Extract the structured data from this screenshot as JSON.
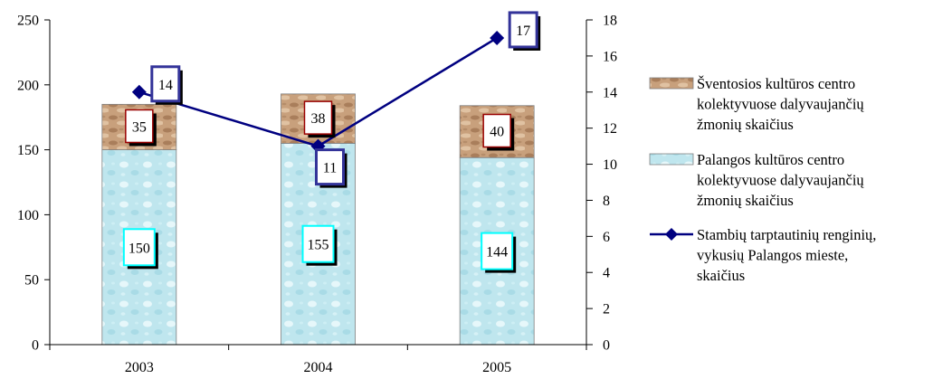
{
  "chart_data": {
    "type": "bar",
    "stacked": true,
    "categories": [
      "2003",
      "2004",
      "2005"
    ],
    "series": [
      {
        "name": "Palangos kultūros centro kolektyvuose dalyvaujančių žmonių skaičius",
        "legend_lines": [
          "Palangos kultūros centro",
          "kolektyvuose dalyvaujančių",
          "žmonių skaičius"
        ],
        "type": "bar",
        "axis": "left",
        "values": [
          150,
          155,
          144
        ],
        "color": "#bfe6ee",
        "label_border": "#00ffff"
      },
      {
        "name": "Šventosios kultūros centro kolektyvuose dalyvaujančių žmonių skaičius",
        "legend_lines": [
          "Šventosios kultūros centro",
          "kolektyvuose dalyvaujančių",
          "žmonių skaičius"
        ],
        "type": "bar",
        "axis": "left",
        "values": [
          35,
          38,
          40
        ],
        "color": "#c9a583",
        "label_border": "#990000"
      },
      {
        "name": "Stambių tarptautinių renginių, vykusių Palangos mieste, skaičius",
        "legend_lines": [
          "Stambių tarptautinių renginių,",
          "vykusių Palangos mieste,",
          "skaičius"
        ],
        "type": "line",
        "axis": "right",
        "values": [
          14,
          11,
          17
        ],
        "color": "#000080",
        "label_border": "#333399"
      }
    ],
    "y_left": {
      "min": 0,
      "max": 250,
      "step": 50,
      "ticks": [
        "0",
        "50",
        "100",
        "150",
        "200",
        "250"
      ]
    },
    "y_right": {
      "min": 0,
      "max": 18,
      "step": 2,
      "ticks": [
        "0",
        "2",
        "4",
        "6",
        "8",
        "10",
        "12",
        "14",
        "16",
        "18"
      ]
    },
    "grid": false,
    "legend_position": "right"
  }
}
